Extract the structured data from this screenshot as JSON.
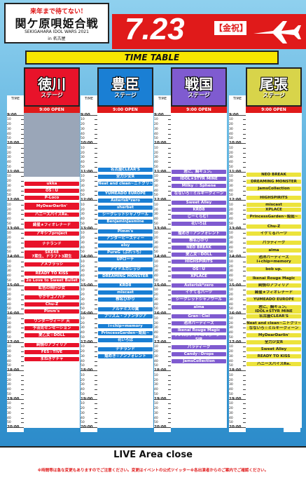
{
  "header": {
    "logo_top": "来年まで待てない!",
    "logo_main": "関ケ原唄姫合戦",
    "logo_sub": "SEKIGAHARA IDOL WARS 2021",
    "logo_sub2": "in 名古屋",
    "date": "7.23",
    "weekday": "【金祝】",
    "timetable_title": "TIME TABLE"
  },
  "time_label": "TIME",
  "open_label": "9:00 OPEN",
  "hours": [
    "9:00",
    "10:00",
    "11:00",
    "12:00",
    "13:00",
    "14:00",
    "15:00",
    "16:00",
    "17:00",
    "18:00",
    "19:00",
    "20:00"
  ],
  "minutes": [
    "10",
    "20",
    "30",
    "40",
    "50"
  ],
  "stages": [
    {
      "name": "徳川",
      "sub": "ステージ",
      "color": "#e8132a",
      "name_color": "#2f2f2f",
      "slot_color": "#e8132a",
      "slot_text": "#ffffff",
      "slots": [
        {
          "s": "11:20",
          "e": "11:30",
          "label": "ukka"
        },
        {
          "s": "11:35",
          "e": "11:45",
          "label": "OS☆U"
        },
        {
          "s": "11:50",
          "e": "12:00",
          "label": "P-Loco"
        },
        {
          "s": "12:05",
          "e": "12:20",
          "label": "MyDearDarlin'"
        },
        {
          "s": "12:25",
          "e": "12:35",
          "label": "ハニースパイスRe."
        },
        {
          "s": "12:45",
          "e": "13:00",
          "label": "綺星★フィオレナード"
        },
        {
          "s": "13:05",
          "e": "13:15",
          "label": "アキシブproject"
        },
        {
          "s": "13:25",
          "e": "13:40",
          "label": "ナナランド"
        },
        {
          "s": "13:45",
          "e": "14:05",
          "label": "SKE48\n7期生、ドラフト3期生"
        },
        {
          "s": "14:10",
          "e": "14:20",
          "label": "アメフラっシ"
        },
        {
          "s": "14:30",
          "e": "14:40",
          "label": "READY TO KISS"
        },
        {
          "s": "14:45",
          "e": "14:55",
          "label": "2o Love to Sweet Bullet"
        },
        {
          "s": "15:00",
          "e": "15:10",
          "label": "虹色の飛行少女"
        },
        {
          "s": "15:20",
          "e": "15:30",
          "label": "サクヤコノハナ"
        },
        {
          "s": "15:35",
          "e": "15:45",
          "label": "Chu-Z"
        },
        {
          "s": "15:50",
          "e": "16:00",
          "label": "Pimm's"
        },
        {
          "s": "16:10",
          "e": "16:20",
          "label": "ワンダーウィード 天"
        },
        {
          "s": "16:25",
          "e": "16:35",
          "label": "予羽克センセーション"
        },
        {
          "s": "16:40",
          "e": "16:50",
          "label": "愛乙女☆DOLL"
        },
        {
          "s": "17:00",
          "e": "17:10",
          "label": "純情のアフィリア"
        },
        {
          "s": "17:15",
          "e": "17:25",
          "label": "FES☆TIVE"
        },
        {
          "s": "17:30",
          "e": "17:40",
          "label": "まねきケチャ"
        }
      ]
    },
    {
      "name": "豊臣",
      "sub": "ステージ",
      "color": "#1a7fd4",
      "name_color": "#2f2f2f",
      "slot_color": "#1a7fd4",
      "slot_text": "#ffffff",
      "slots": [
        {
          "s": "10:50",
          "e": "11:00",
          "label": "名古屋CLEAR'S"
        },
        {
          "s": "11:05",
          "e": "11:15",
          "label": "全力少女R"
        },
        {
          "s": "11:20",
          "e": "11:30",
          "label": "Neat and clean~ニトクリ~"
        },
        {
          "s": "11:40",
          "e": "11:50",
          "label": "YUMEADO EUROPE"
        },
        {
          "s": "11:55",
          "e": "12:05",
          "label": "Asterisk*zero"
        },
        {
          "s": "12:10",
          "e": "12:20",
          "label": "sherbet"
        },
        {
          "s": "12:25",
          "e": "12:35",
          "label": "シークレットシャノワール"
        },
        {
          "s": "12:40",
          "e": "12:50",
          "label": "BenjaminJasmine"
        },
        {
          "s": "13:00",
          "e": "13:10",
          "label": "Pimm's"
        },
        {
          "s": "13:15",
          "e": "13:25",
          "label": "アンダービースティー"
        },
        {
          "s": "13:30",
          "e": "13:40",
          "label": "elsy"
        },
        {
          "s": "13:45",
          "e": "13:55",
          "label": "PureG（ぷれっち）"
        },
        {
          "s": "14:00",
          "e": "14:10",
          "label": "UPローチ"
        },
        {
          "s": "14:20",
          "e": "14:30",
          "label": "アイドルカレッジ"
        },
        {
          "s": "14:35",
          "e": "14:45",
          "label": "DREAMING MONSTER"
        },
        {
          "s": "14:55",
          "e": "15:05",
          "label": "KRD8"
        },
        {
          "s": "15:10",
          "e": "15:20",
          "label": "miscast"
        },
        {
          "s": "15:25",
          "e": "15:35",
          "label": "椎名ひかり"
        },
        {
          "s": "15:45",
          "e": "15:55",
          "label": "アルテミスの翼"
        },
        {
          "s": "16:00",
          "e": "16:10",
          "label": "プリズム・ファンタジア"
        },
        {
          "s": "16:20",
          "e": "16:30",
          "label": "i+chip=memory"
        },
        {
          "s": "16:35",
          "e": "16:45",
          "label": "PrincessGarden~姫庭~"
        },
        {
          "s": "16:50",
          "e": "17:00",
          "label": "花いろは"
        },
        {
          "s": "17:10",
          "e": "17:20",
          "label": "ナナランド"
        },
        {
          "s": "17:25",
          "e": "17:35",
          "label": "煌めき☆アンフォレント"
        }
      ]
    },
    {
      "name": "戦国",
      "sub": "ステージ",
      "color": "#7f5bd0",
      "name_color": "#2f2f2f",
      "slot_color": "#7f5bd0",
      "slot_text": "#ffffff",
      "slots": [
        {
          "s": "10:55",
          "e": "11:05",
          "label": "君に、胸キュン。"
        },
        {
          "s": "11:10",
          "e": "11:20",
          "label": "IDOL★STYR MINE"
        },
        {
          "s": "11:25",
          "e": "11:35",
          "label": "Milky ☆ Sphene"
        },
        {
          "s": "11:40",
          "e": "11:50",
          "label": "なないろ☆ミルキークィーン"
        },
        {
          "s": "12:00",
          "e": "12:10",
          "label": "Sweet Alley"
        },
        {
          "s": "12:15",
          "e": "12:25",
          "label": "KRD8"
        },
        {
          "s": "12:30",
          "e": "12:40",
          "label": "じーくらむ！"
        },
        {
          "s": "12:45",
          "e": "12:55",
          "label": "花いろは"
        },
        {
          "s": "13:05",
          "e": "13:15",
          "label": "煌めき☆アンフォレント"
        },
        {
          "s": "13:20",
          "e": "13:30",
          "label": "椎名ひかり"
        },
        {
          "s": "13:35",
          "e": "13:45",
          "label": "NEO BREAK"
        },
        {
          "s": "13:50",
          "e": "14:00",
          "label": "愛乙女☆DOLL"
        },
        {
          "s": "14:05",
          "e": "14:15",
          "label": "HIGHSPIRITS"
        },
        {
          "s": "14:20",
          "e": "14:30",
          "label": "OS☆U"
        },
        {
          "s": "14:35",
          "e": "14:45",
          "label": "XPLACE"
        },
        {
          "s": "14:55",
          "e": "15:05",
          "label": "Asterisk*zero"
        },
        {
          "s": "15:10",
          "e": "15:20",
          "label": "イケてるハーツ"
        },
        {
          "s": "15:25",
          "e": "15:35",
          "label": "シークレットシャノワール"
        },
        {
          "s": "15:40",
          "e": "15:50",
          "label": "alma"
        },
        {
          "s": "16:00",
          "e": "16:10",
          "label": "Gran☆Ciel"
        },
        {
          "s": "16:15",
          "e": "16:25",
          "label": "池洋パーティーズ"
        },
        {
          "s": "16:30",
          "e": "16:40",
          "label": "Ikenai Rouge Magic"
        },
        {
          "s": "16:45",
          "e": "16:55",
          "label": "サンスポアイドルリポーター SIR"
        },
        {
          "s": "17:05",
          "e": "17:15",
          "label": "パラディーク"
        },
        {
          "s": "17:20",
          "e": "17:30",
          "label": "Candy☆Drops"
        },
        {
          "s": "17:35",
          "e": "17:45",
          "label": "JamsCollection"
        }
      ]
    },
    {
      "name": "尾張",
      "sub": "ステージ",
      "color": "#d8d44a",
      "name_color": "#2f2f2f",
      "slot_color": "#ece33c",
      "slot_text": "#222222",
      "slots": [
        {
          "s": "11:00",
          "e": "11:10",
          "label": "NEO BREAK"
        },
        {
          "s": "11:15",
          "e": "11:25",
          "label": "DREAMING MONSTER"
        },
        {
          "s": "11:30",
          "e": "11:40",
          "label": "JamsCollection"
        },
        {
          "s": "11:50",
          "e": "12:00",
          "label": "HIGHSPIRITS"
        },
        {
          "s": "12:05",
          "e": "12:15",
          "label": "miscast"
        },
        {
          "s": "12:15",
          "e": "12:25",
          "label": "XPLACE"
        },
        {
          "s": "12:30",
          "e": "12:40",
          "label": "PrincessGarden~姫庭~"
        },
        {
          "s": "12:50",
          "e": "13:00",
          "label": "Chu-Z"
        },
        {
          "s": "13:05",
          "e": "13:15",
          "label": "イケてるハーツ"
        },
        {
          "s": "13:25",
          "e": "13:35",
          "label": "パラディーク"
        },
        {
          "s": "13:40",
          "e": "13:50",
          "label": "alma"
        },
        {
          "s": "13:55",
          "e": "14:05",
          "label": "池洋パーティーズ"
        },
        {
          "s": "14:05",
          "e": "14:15",
          "label": "i+chip=memory"
        },
        {
          "s": "14:20",
          "e": "14:30",
          "label": "bob up."
        },
        {
          "s": "14:40",
          "e": "14:50",
          "label": "Ikenai Rouge Magic"
        },
        {
          "s": "14:55",
          "e": "15:05",
          "label": "純情のアフィリア"
        },
        {
          "s": "15:10",
          "e": "15:20",
          "label": "綺星★フィオレナード"
        },
        {
          "s": "15:25",
          "e": "15:35",
          "label": "YUMEADO EUROPE"
        },
        {
          "s": "15:40",
          "e": "15:50",
          "label": "君に、胸キュン。"
        },
        {
          "s": "15:50",
          "e": "16:00",
          "label": "IDOL★STYR MINE"
        },
        {
          "s": "16:00",
          "e": "16:10",
          "label": "名古屋CLEAR'S"
        },
        {
          "s": "16:15",
          "e": "16:25",
          "label": "Neat and clean~ニトクリ~"
        },
        {
          "s": "16:25",
          "e": "16:35",
          "label": "なないろ☆ミルキークィーン"
        },
        {
          "s": "16:40",
          "e": "16:50",
          "label": "MyDearDarlin'"
        },
        {
          "s": "16:55",
          "e": "17:05",
          "label": "全力少女R"
        },
        {
          "s": "17:10",
          "e": "17:20",
          "label": "Sweet Alley"
        },
        {
          "s": "17:25",
          "e": "17:35",
          "label": "READY TO KISS"
        },
        {
          "s": "17:40",
          "e": "17:50",
          "label": "ハニースパイスRe."
        }
      ]
    }
  ],
  "footer": {
    "live_close": "LIVE Area close",
    "notice": "※時間等は急な変更もありますのでご注意ください。変更はイベントの公式ツイッター※各出演者からのご案内でご確認ください。"
  }
}
